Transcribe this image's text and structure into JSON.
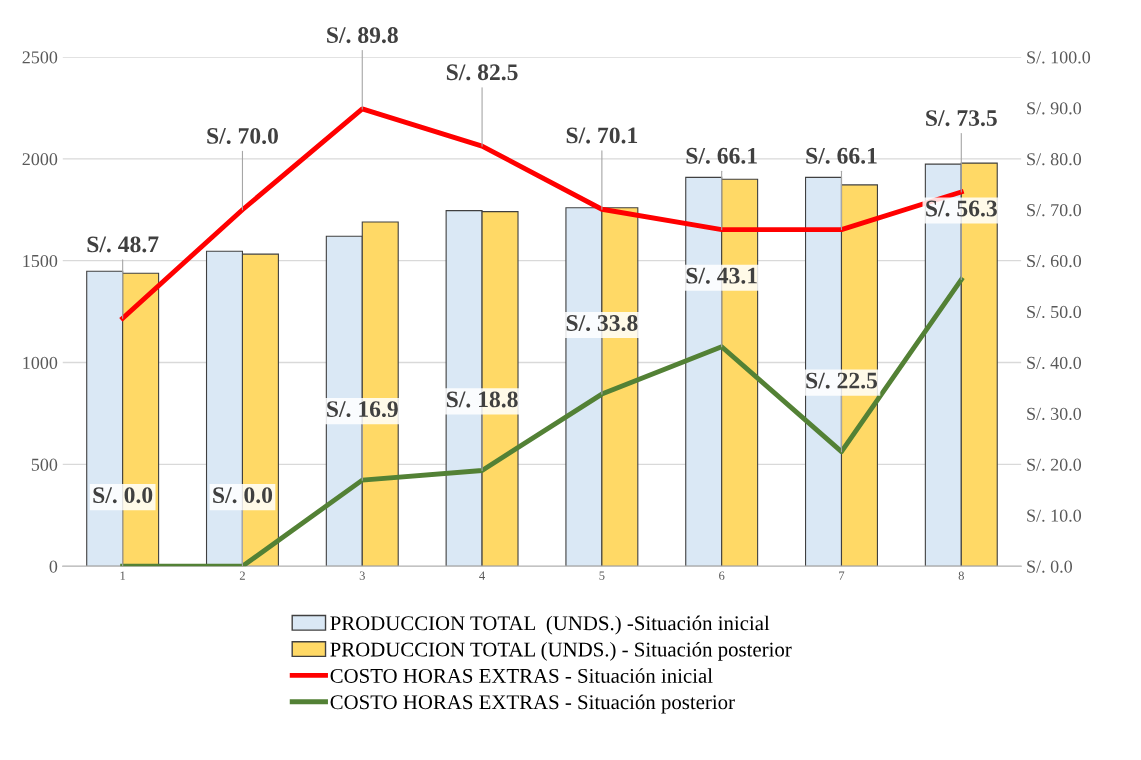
{
  "chart_data": {
    "type": "bar",
    "categories": [
      "1",
      "2",
      "3",
      "4",
      "5",
      "6",
      "7",
      "8"
    ],
    "series": [
      {
        "name": "PRODUCCION TOTAL  (UNDS.) -Situación inicial",
        "color": "#dae8f5",
        "values": [
          1448,
          1546,
          1620,
          1746,
          1760,
          1909,
          1909,
          1974
        ]
      },
      {
        "name": "PRODUCCION TOTAL (UNDS.) - Situación posterior",
        "color": "#ffd966",
        "values": [
          1438,
          1532,
          1690,
          1741,
          1760,
          1900,
          1872,
          1979
        ]
      },
      {
        "name": "COSTO HORAS EXTRAS - Situación inicial",
        "type": "line",
        "axis": "y2",
        "color": "#ff0000",
        "values": [
          48.7,
          70.0,
          89.8,
          82.5,
          70.1,
          66.1,
          66.1,
          73.5
        ],
        "value_labels": [
          "S/. 48.7",
          "S/. 70.0",
          "S/. 89.8",
          "S/. 82.5",
          "S/. 70.1",
          "S/. 66.1",
          "S/. 66.1",
          "S/. 73.5"
        ]
      },
      {
        "name": "COSTO HORAS EXTRAS - Situación posterior",
        "type": "line",
        "axis": "y2",
        "color": "#538135",
        "values": [
          0.0,
          0.0,
          16.9,
          18.8,
          33.8,
          43.1,
          22.5,
          56.3
        ],
        "value_labels": [
          "S/. 0.0",
          "S/. 0.0",
          "S/. 16.9",
          "S/. 18.8",
          "S/. 33.8",
          "S/. 43.1",
          "S/. 22.5",
          "S/. 56.3"
        ]
      }
    ],
    "ylim": [
      0,
      2500
    ],
    "yticks": [
      0,
      500,
      1000,
      1500,
      2000,
      2500
    ],
    "y2lim": [
      0,
      100
    ],
    "y2ticks": [
      {
        "value": 0,
        "label": "S/. 0.0"
      },
      {
        "value": 10,
        "label": "S/. 10.0"
      },
      {
        "value": 20,
        "label": "S/. 20.0"
      },
      {
        "value": 30,
        "label": "S/. 30.0"
      },
      {
        "value": 40,
        "label": "S/. 40.0"
      },
      {
        "value": 50,
        "label": "S/. 50.0"
      },
      {
        "value": 60,
        "label": "S/. 60.0"
      },
      {
        "value": 70,
        "label": "S/. 70.0"
      },
      {
        "value": 80,
        "label": "S/. 80.0"
      },
      {
        "value": 90,
        "label": "S/. 90.0"
      },
      {
        "value": 100,
        "label": "S/. 100.0"
      }
    ],
    "grid": "y",
    "legend": "bottom",
    "marker": "none",
    "line_style": "solid"
  }
}
